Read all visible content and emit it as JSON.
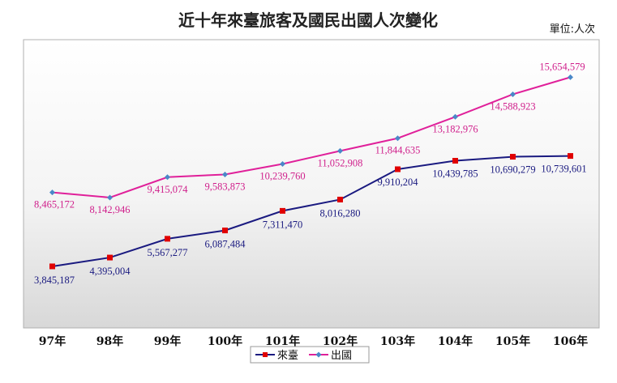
{
  "chart_data": {
    "type": "line",
    "title": "近十年來臺旅客及國民出國人次變化",
    "unit_label": "單位:人次",
    "categories": [
      "97年",
      "98年",
      "99年",
      "100年",
      "101年",
      "102年",
      "103年",
      "104年",
      "105年",
      "106年"
    ],
    "ylim": [
      0,
      18000000
    ],
    "grid": false,
    "legend_position": "bottom",
    "series": [
      {
        "name": "來臺",
        "color": "#1a1a80",
        "marker_color": "#e00000",
        "marker": "square",
        "values": [
          3845187,
          4395004,
          5567277,
          6087484,
          7311470,
          8016280,
          9910204,
          10439785,
          10690279,
          10739601
        ],
        "labels": [
          "3,845,187",
          "4,395,004",
          "5,567,277",
          "6,087,484",
          "7,311,470",
          "8,016,280",
          "9,910,204",
          "10,439,785",
          "10,690,279",
          "10,739,601"
        ]
      },
      {
        "name": "出國",
        "color": "#e0209a",
        "marker_color": "#4a88c8",
        "marker": "diamond",
        "values": [
          8465172,
          8142946,
          9415074,
          9583873,
          10239760,
          11052908,
          11844635,
          13182976,
          14588923,
          15654579
        ],
        "labels": [
          "8,465,172",
          "8,142,946",
          "9,415,074",
          "9,583,873",
          "10,239,760",
          "11,052,908",
          "11,844,635",
          "13,182,976",
          "14,588,923",
          "15,654,579"
        ]
      }
    ]
  }
}
